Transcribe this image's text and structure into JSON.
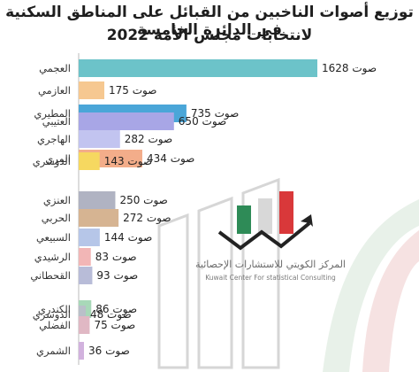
{
  "title_line1": "توزيع أصوات الناخبين من القبائل على المناطق السكنية في الدائرة الخامسة",
  "title_line2": "لانتخابات مجلس الأمة 2022",
  "logo": {
    "name_ar": "المركز الكويتي للاستشارات الإحصائية",
    "name_en": "Kuwait Center For statistical Consulting"
  },
  "value_prefix": "صوت",
  "chart_data": {
    "type": "bar",
    "orientation": "horizontal",
    "title": "توزيع أصوات الناخبين من القبائل على المناطق السكنية في الدائرة الخامسة لانتخابات مجلس الأمة 2022",
    "categories": [
      "العجمي",
      "العازمي",
      "المطيري",
      "العتيبي",
      "الهاجري",
      "المري",
      "الدوسري",
      "العنزي",
      "الحربي",
      "السبيعي",
      "الرشيدي",
      "القحطاني",
      "الكندري",
      "الدوسري",
      "الفضلي",
      "الشمري"
    ],
    "values": [
      1628,
      175,
      735,
      650,
      282,
      434,
      143,
      250,
      272,
      144,
      83,
      93,
      86,
      48,
      75,
      36
    ],
    "colors": [
      "#6cc3c9",
      "#f6c891",
      "#4aa6d8",
      "#a8a6e6",
      "#c2c4f0",
      "#f3ad8a",
      "#f6d860",
      "#b0b3c2",
      "#d6b492",
      "#b6c6e8",
      "#f2b6b6",
      "#b8bcd8",
      "#a8d8b8",
      "#b9c0c9",
      "#e0b8c4",
      "#d2b2de"
    ]
  }
}
